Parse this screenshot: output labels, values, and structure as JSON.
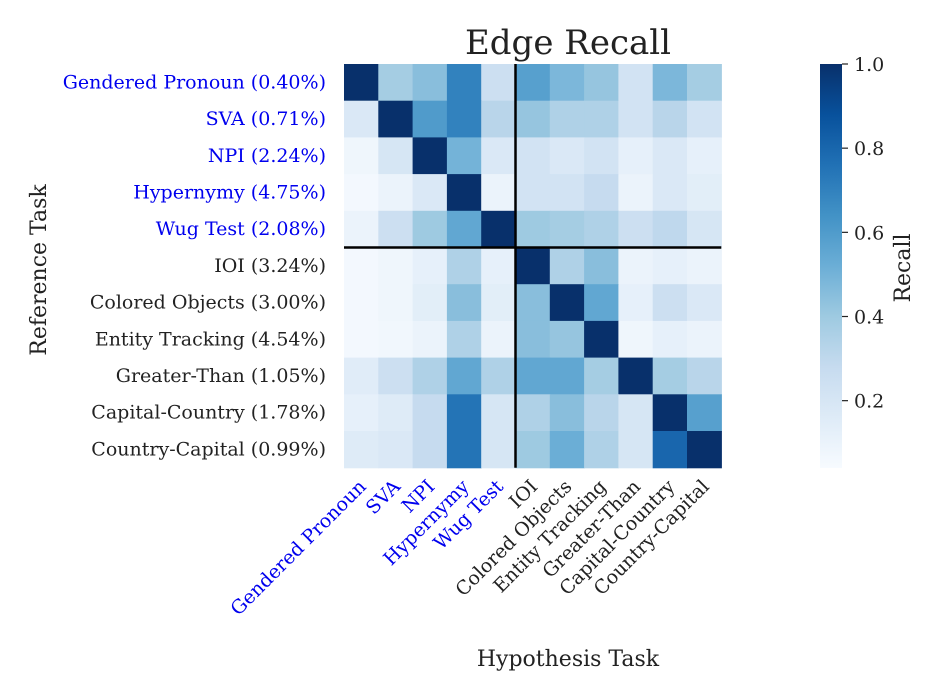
{
  "chart_data": {
    "type": "heatmap",
    "title": "Edge Recall",
    "xlabel": "Hypothesis Task",
    "ylabel": "Reference Task",
    "colorbar_label": "Recall",
    "colorbar_ticks": [
      "0.2",
      "0.4",
      "0.6",
      "0.8",
      "1.0"
    ],
    "colorbar_tick_values": [
      0.2,
      0.4,
      0.6,
      0.8,
      1.0
    ],
    "value_range": [
      0.04,
      1.0
    ],
    "highlight_color": "#0000ee",
    "normal_color": "#222222",
    "highlight_count": 5,
    "x_labels": [
      "Gendered Pronoun",
      "SVA",
      "NPI",
      "Hypernymy",
      "Wug Test",
      "IOI",
      "Colored Objects",
      "Entity Tracking",
      "Greater-Than",
      "Capital-Country",
      "Country-Capital"
    ],
    "y_labels": [
      "Gendered Pronoun (0.40%)",
      "SVA (0.71%)",
      "NPI (2.24%)",
      "Hypernymy (4.75%)",
      "Wug Test (2.08%)",
      "IOI (3.24%)",
      "Colored Objects (3.00%)",
      "Entity Tracking (4.54%)",
      "Greater-Than (1.05%)",
      "Capital-Country (1.78%)",
      "Country-Capital (0.99%)"
    ],
    "values": [
      [
        1.0,
        0.38,
        0.45,
        0.7,
        0.25,
        0.58,
        0.48,
        0.42,
        0.22,
        0.48,
        0.38
      ],
      [
        0.18,
        1.0,
        0.6,
        0.7,
        0.32,
        0.42,
        0.35,
        0.35,
        0.22,
        0.32,
        0.22
      ],
      [
        0.08,
        0.2,
        1.0,
        0.5,
        0.18,
        0.22,
        0.18,
        0.22,
        0.12,
        0.18,
        0.12
      ],
      [
        0.06,
        0.1,
        0.18,
        1.0,
        0.1,
        0.22,
        0.22,
        0.28,
        0.1,
        0.18,
        0.14
      ],
      [
        0.1,
        0.25,
        0.4,
        0.55,
        1.0,
        0.4,
        0.38,
        0.35,
        0.25,
        0.3,
        0.2
      ],
      [
        0.06,
        0.08,
        0.12,
        0.35,
        0.12,
        1.0,
        0.35,
        0.45,
        0.1,
        0.12,
        0.1
      ],
      [
        0.06,
        0.08,
        0.14,
        0.45,
        0.14,
        0.45,
        1.0,
        0.55,
        0.12,
        0.25,
        0.18
      ],
      [
        0.06,
        0.07,
        0.1,
        0.35,
        0.1,
        0.45,
        0.42,
        1.0,
        0.08,
        0.12,
        0.1
      ],
      [
        0.15,
        0.25,
        0.35,
        0.55,
        0.35,
        0.55,
        0.55,
        0.38,
        1.0,
        0.38,
        0.32
      ],
      [
        0.12,
        0.16,
        0.28,
        0.75,
        0.2,
        0.35,
        0.45,
        0.32,
        0.2,
        1.0,
        0.58
      ],
      [
        0.16,
        0.18,
        0.28,
        0.75,
        0.2,
        0.4,
        0.52,
        0.35,
        0.2,
        0.8,
        1.0
      ]
    ]
  }
}
